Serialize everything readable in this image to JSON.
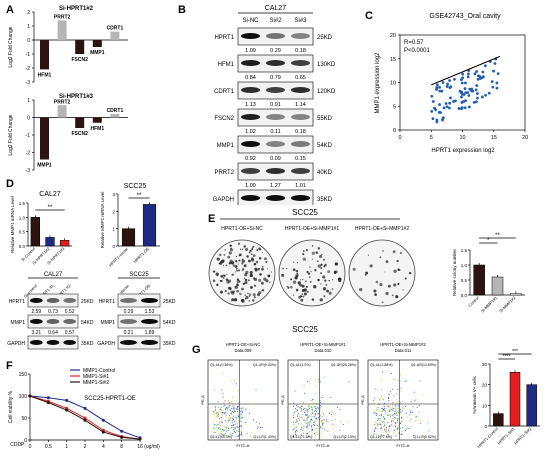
{
  "panels": {
    "A": "A",
    "B": "B",
    "C": "C",
    "D": "D",
    "E": "E",
    "F": "F",
    "G": "G"
  },
  "colors": {
    "dark": "#2b1410",
    "light": "#b5b5b5",
    "navy": "#1f2a85",
    "red": "#e02020",
    "scatter": "#1f5fb4",
    "white": "#ffffff"
  },
  "panelA": {
    "ylabel": "Log2 Fold Change",
    "charts": [
      {
        "title": "Si-HPRT1#2",
        "labels": [
          "HFM1",
          "PRRT2",
          "FSCN2",
          "MMP1",
          "CDRT1"
        ],
        "values": [
          -2.1,
          1.4,
          -1.0,
          -0.5,
          0.6
        ],
        "ylim": [
          -3,
          2
        ],
        "colors": [
          "dark",
          "light",
          "dark",
          "dark",
          "light"
        ]
      },
      {
        "title": "Si-HPRT1#3",
        "labels": [
          "MMP1",
          "PRRT2",
          "FSCN2",
          "HFM1",
          "CDRT1"
        ],
        "values": [
          -2.4,
          0.7,
          -0.6,
          -0.3,
          0.2
        ],
        "ylim": [
          -3,
          1
        ],
        "colors": [
          "dark",
          "light",
          "dark",
          "dark",
          "light"
        ]
      }
    ]
  },
  "panelB": {
    "cell": "CAL27",
    "lanes": [
      "Si-NC",
      "Si#2",
      "Si#3"
    ],
    "rows": [
      {
        "name": "HPRT1",
        "kd": "25KD",
        "q": [
          "1.09",
          "0.29",
          "0.18"
        ],
        "i": [
          1.0,
          0.4,
          0.3
        ]
      },
      {
        "name": "HFM1",
        "kd": "130KD",
        "q": [
          "0.84",
          "0.79",
          "0.65"
        ],
        "i": [
          0.9,
          0.8,
          0.7
        ]
      },
      {
        "name": "CDRT1",
        "kd": "120KD",
        "q": [
          "1.13",
          "0.91",
          "1.14"
        ],
        "i": [
          0.8,
          0.7,
          0.8
        ]
      },
      {
        "name": "FSCN2",
        "kd": "55KD",
        "q": [
          "1.02",
          "0.11",
          "0.18"
        ],
        "i": [
          0.9,
          0.3,
          0.3
        ]
      },
      {
        "name": "MMP1",
        "kd": "54KD",
        "q": [
          "0.92",
          "0.09",
          "0.15"
        ],
        "i": [
          1.0,
          0.3,
          0.35
        ]
      },
      {
        "name": "PRRT2",
        "kd": "40KD",
        "q": [
          "1.09",
          "1.27",
          "1.01"
        ],
        "i": [
          0.7,
          0.8,
          0.7
        ]
      },
      {
        "name": "GAPDH",
        "kd": "35KD",
        "q": [],
        "i": [
          1.0,
          1.0,
          1.0
        ]
      }
    ]
  },
  "panelC": {
    "title": "GSE42743_Oral cavity",
    "r": "R=0.57",
    "p": "P<0.0001",
    "ylabel": "MMP1 expression  log2",
    "xlabel": "HPRT1 expression  log2",
    "xticks": [
      "0",
      "5",
      "10",
      "15",
      "20"
    ],
    "yticks": [
      "0",
      "5",
      "10",
      "15",
      "20"
    ],
    "xlim": [
      0,
      20
    ],
    "ylim": [
      0,
      20
    ]
  },
  "panelD": {
    "charts": [
      {
        "title": "CAL27",
        "ylabel": "Relative MMP1 mRNA Level",
        "cats": [
          "Si-Control",
          "Si-HPRT1#2",
          "Si-HPRT1#3"
        ],
        "values": [
          1.0,
          0.3,
          0.2
        ],
        "ylim": [
          0,
          1.5
        ],
        "yticks": [
          "0.0",
          "0.5",
          "1.0",
          "1.5"
        ],
        "colors": [
          "dark",
          "navy",
          "red"
        ],
        "sig": "**"
      },
      {
        "title": "SCC25",
        "ylabel": "Relative MMP1 mRNA Level",
        "cats": [
          "HPRT1-vector",
          "HPRT1-OE"
        ],
        "values": [
          1.0,
          2.4
        ],
        "ylim": [
          0,
          3
        ],
        "yticks": [
          "0",
          "1",
          "2",
          "3"
        ],
        "colors": [
          "dark",
          "navy"
        ],
        "sig": "**"
      }
    ],
    "blots": [
      {
        "cell": "CAL27",
        "lanes": [
          "Si-control",
          "Si-HPRT1 #1",
          "Si-HPRT1 #2"
        ],
        "rows": [
          {
            "name": "HPRT1",
            "kd": "25KD",
            "q": [
              "2.59",
              "0.73",
              "0.52"
            ],
            "i": [
              1.0,
              0.5,
              0.4
            ]
          },
          {
            "name": "MMP1",
            "kd": "54KD",
            "q": [
              "3.21",
              "0.64",
              "0.57"
            ],
            "i": [
              1.0,
              0.5,
              0.45
            ]
          },
          {
            "name": "GAPDH",
            "kd": "35KD",
            "q": [],
            "i": [
              1.0,
              1.0,
              1.0
            ]
          }
        ]
      },
      {
        "cell": "SCC25",
        "lanes": [
          "Vector",
          "HPRT1-OE"
        ],
        "rows": [
          {
            "name": "HPRT1",
            "kd": "25KD",
            "q": [
              "0.29",
              "1.53"
            ],
            "i": [
              0.4,
              1.0
            ]
          },
          {
            "name": "MMP1",
            "kd": "54KD",
            "q": [
              "0.21",
              "1.89"
            ],
            "i": [
              0.4,
              1.0
            ]
          },
          {
            "name": "GAPDH",
            "kd": "35KD",
            "q": [],
            "i": [
              1.0,
              1.0
            ]
          }
        ]
      }
    ]
  },
  "panelE": {
    "title": "SCC25",
    "dishes": [
      "HPRT1-OE+Si-NC",
      "HPRT1-OE+Si-MMP1#1",
      "HPRT1-OE+Si-MMP1#2"
    ],
    "chart": {
      "ylabel": "Relative colony number",
      "cats": [
        "Control",
        "Si-MMP1#1",
        "Si-MMP1#2"
      ],
      "values": [
        1.0,
        0.6,
        0.05
      ],
      "ylim": [
        0,
        1.5
      ],
      "yticks": [
        "0.0",
        "0.5",
        "1.0",
        "1.5"
      ],
      "colors": [
        "dark",
        "light",
        "white"
      ],
      "sig": [
        "*",
        "**"
      ]
    }
  },
  "panelF": {
    "title": "SCC25-HPRT1-OE",
    "ylabel": "Cell viability %",
    "xlabel": "CDDP:",
    "unit": "(ug/ml)",
    "xticks": [
      "0",
      "0.5",
      "1",
      "2",
      "4",
      "8",
      "16"
    ],
    "yticks": [
      "0",
      "50",
      "100",
      "150"
    ],
    "series": [
      {
        "name": "MMP1-Control",
        "color": "navy",
        "values": [
          100,
          96,
          90,
          72,
          45,
          20,
          5
        ]
      },
      {
        "name": "MMP1-Si#1",
        "color": "red",
        "values": [
          100,
          88,
          72,
          50,
          22,
          8,
          2
        ]
      },
      {
        "name": "MMP1-Si#2",
        "color": "dark",
        "values": [
          100,
          85,
          68,
          45,
          18,
          6,
          2
        ]
      }
    ]
  },
  "panelG": {
    "title": "SCC25",
    "plots": [
      {
        "title": "HPRT1-OE+Si-NC",
        "sub": "Data.009",
        "q": [
          "Q1-UL(0.36%)",
          "Q1-UR(9.00%)",
          "Q1-LL(90.0%)",
          "Q1-LR(1.43%)"
        ],
        "y": "PE-A",
        "x": "FITC-A"
      },
      {
        "title": "HPRT1-OE+Si-MMP1#1",
        "sub": "Data.010",
        "q": [
          "Q1-UL(1.0%)",
          "Q1-UR(25.26%)",
          "Q1-LL(71.8%)",
          "Q1-LR(2.13%)"
        ],
        "y": "PE-A",
        "x": "FITC-A"
      },
      {
        "title": "HPRT1-OE+Si-MMP1#2",
        "sub": "Data.011",
        "q": [
          "Q1-UL(2.88%)",
          "Q1-UR(14.69%)",
          "Q1-LL(77.4%)",
          "Q1-LR(5.02%)"
        ],
        "y": "PE-A",
        "x": "FITC-A"
      }
    ],
    "chart": {
      "ylabel": "%Annexin V+ cells",
      "cats": [
        "HPRT1-Control",
        "HPRT1-Si#1",
        "HPRT1-Si#2"
      ],
      "values": [
        6,
        26,
        20
      ],
      "ylim": [
        0,
        30
      ],
      "yticks": [
        "0",
        "10",
        "20",
        "30"
      ],
      "colors": [
        "dark",
        "red",
        "navy"
      ],
      "sig": [
        "****",
        "***"
      ]
    }
  }
}
